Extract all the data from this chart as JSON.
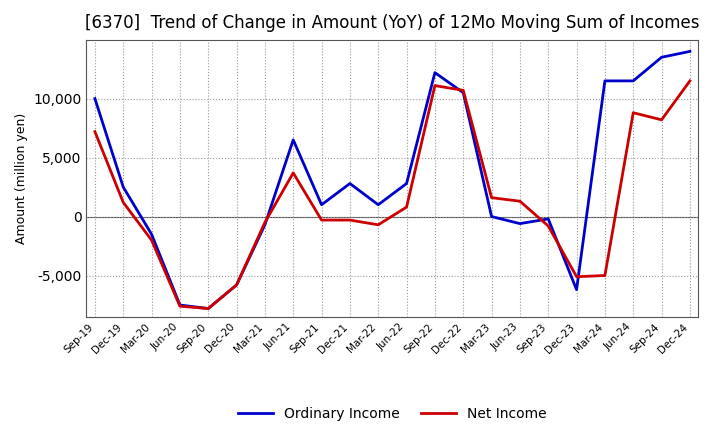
{
  "title": "[6370]  Trend of Change in Amount (YoY) of 12Mo Moving Sum of Incomes",
  "ylabel": "Amount (million yen)",
  "x_labels": [
    "Sep-19",
    "Dec-19",
    "Mar-20",
    "Jun-20",
    "Sep-20",
    "Dec-20",
    "Mar-21",
    "Jun-21",
    "Sep-21",
    "Dec-21",
    "Mar-22",
    "Jun-22",
    "Sep-22",
    "Dec-22",
    "Mar-23",
    "Jun-23",
    "Sep-23",
    "Dec-23",
    "Mar-24",
    "Jun-24",
    "Sep-24",
    "Dec-24"
  ],
  "ordinary_income": [
    10000,
    2500,
    -1500,
    -7500,
    -7800,
    -5800,
    -700,
    6500,
    1000,
    2800,
    1000,
    2800,
    12200,
    10500,
    0,
    -600,
    -200,
    -6200,
    11500,
    11500,
    13500,
    14000
  ],
  "net_income": [
    7200,
    1200,
    -2000,
    -7600,
    -7800,
    -5800,
    -500,
    3700,
    -300,
    -300,
    -700,
    800,
    11100,
    10700,
    1600,
    1300,
    -800,
    -5100,
    -5000,
    8800,
    8200,
    11500
  ],
  "ordinary_income_color": "#0000cc",
  "net_income_color": "#cc0000",
  "ylim": [
    -8500,
    15000
  ],
  "yticks": [
    -5000,
    0,
    5000,
    10000
  ],
  "background_color": "#ffffff",
  "grid_color": "#999999",
  "title_fontsize": 12,
  "legend_labels": [
    "Ordinary Income",
    "Net Income"
  ]
}
